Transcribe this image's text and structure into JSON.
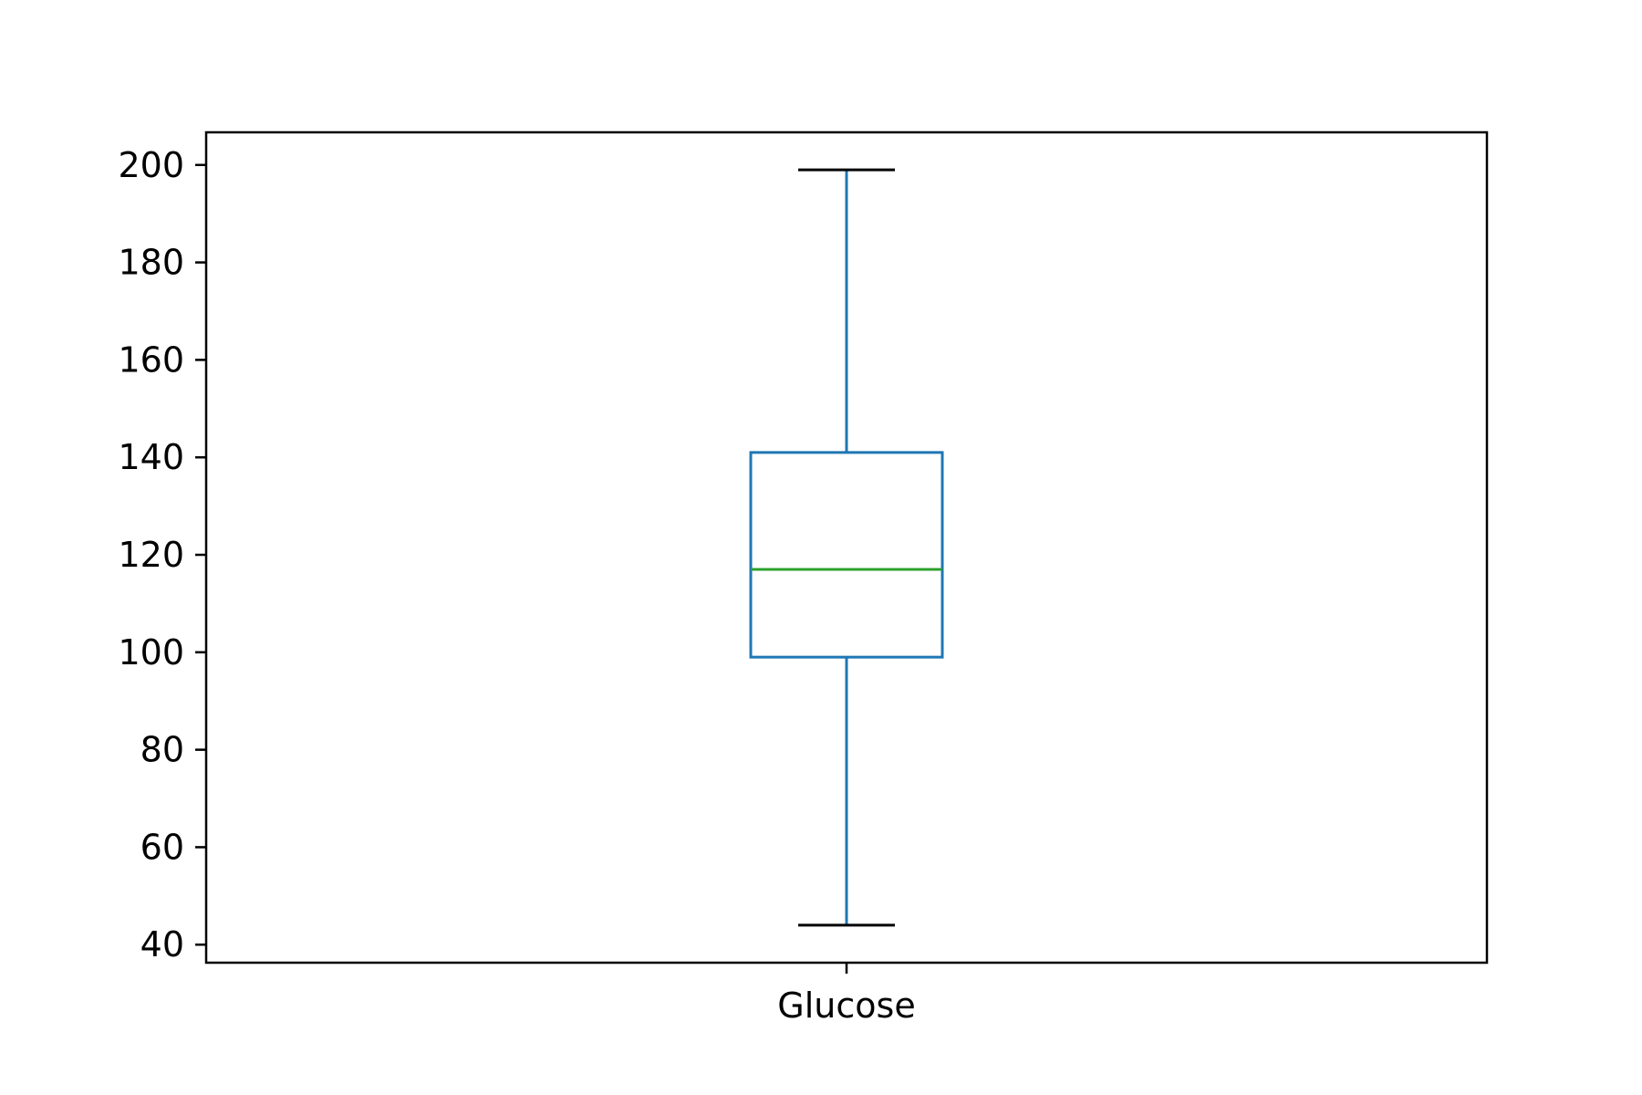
{
  "chart_data": {
    "type": "box",
    "title": "",
    "xlabel": "",
    "ylabel": "",
    "categories": [
      "Glucose"
    ],
    "boxes": [
      {
        "category": "Glucose",
        "whisker_low": 44,
        "q1": 99,
        "median": 117,
        "q3": 141,
        "whisker_high": 199
      }
    ],
    "ylim": [
      36.3,
      206.7
    ],
    "yticks": [
      40,
      60,
      80,
      100,
      120,
      140,
      160,
      180,
      200
    ],
    "grid": false,
    "legend": "none",
    "colors": {
      "box": "#1f77b4",
      "whisker": "#1f77b4",
      "cap": "#000000",
      "median": "#2ca02c",
      "axes": "#000000"
    }
  }
}
